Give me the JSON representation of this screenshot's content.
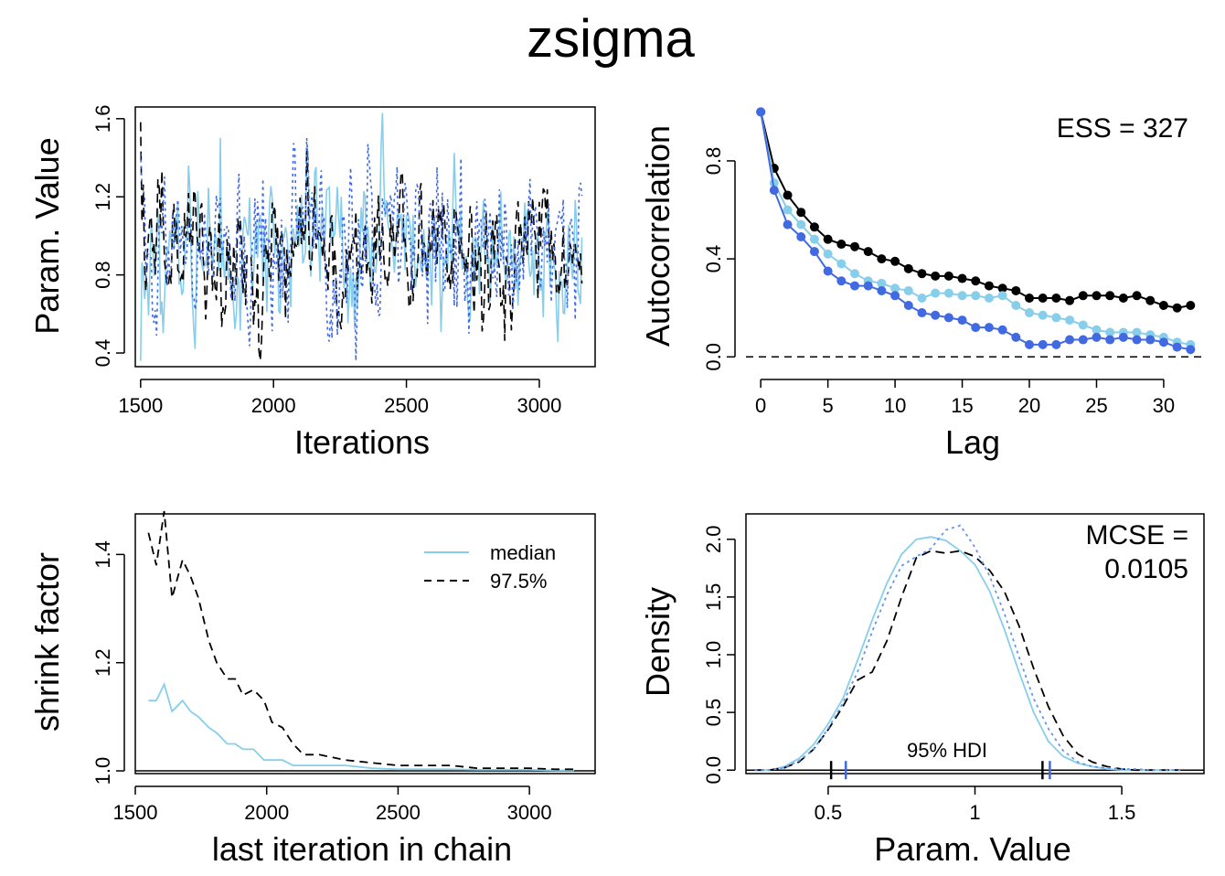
{
  "title": "zsigma",
  "colors": {
    "chain1": "#87ceeb",
    "chain2": "#000000",
    "chain3": "#4169e1",
    "chain3_light": "#6495ed"
  },
  "chart_data": [
    {
      "panel": "trace",
      "type": "line",
      "xlabel": "Iterations",
      "ylabel": "Param. Value",
      "xlim": [
        1480,
        3210
      ],
      "ylim": [
        0.33,
        1.66
      ],
      "xticks": [
        1500,
        2000,
        2500,
        3000
      ],
      "yticks": [
        0.4,
        0.8,
        1.2,
        1.6
      ],
      "x_range": [
        1500,
        3160
      ],
      "series": [
        {
          "chain": 1,
          "mean": 0.93,
          "sd": 0.2,
          "seed": 11,
          "style": "solid",
          "color_key": "chain1"
        },
        {
          "chain": 2,
          "mean": 0.92,
          "sd": 0.19,
          "seed": 23,
          "style": "dashed",
          "color_key": "chain2"
        },
        {
          "chain": 3,
          "mean": 0.94,
          "sd": 0.21,
          "seed": 37,
          "style": "dotted",
          "color_key": "chain3"
        }
      ]
    },
    {
      "panel": "autocorrelation",
      "type": "line",
      "xlabel": "Lag",
      "ylabel": "Autocorrelation",
      "annotation": "ESS = 327",
      "xlim": [
        -1.1,
        33
      ],
      "ylim": [
        -0.04,
        1.02
      ],
      "xticks": [
        0,
        5,
        10,
        15,
        20,
        25,
        30
      ],
      "yticks": [
        0.0,
        0.4,
        0.8
      ],
      "lags": [
        0,
        1,
        2,
        3,
        4,
        5,
        6,
        7,
        8,
        9,
        10,
        11,
        12,
        13,
        14,
        15,
        16,
        17,
        18,
        19,
        20,
        21,
        22,
        23,
        24,
        25,
        26,
        27,
        28,
        29,
        30,
        31,
        32
      ],
      "series": [
        {
          "chain": 2,
          "color_key": "chain2",
          "values": [
            1.0,
            0.77,
            0.66,
            0.59,
            0.53,
            0.48,
            0.46,
            0.45,
            0.43,
            0.4,
            0.39,
            0.36,
            0.34,
            0.33,
            0.33,
            0.32,
            0.31,
            0.29,
            0.28,
            0.27,
            0.24,
            0.24,
            0.24,
            0.23,
            0.25,
            0.25,
            0.25,
            0.24,
            0.25,
            0.23,
            0.21,
            0.2,
            0.21
          ]
        },
        {
          "chain": 1,
          "color_key": "chain1",
          "values": [
            1.0,
            0.71,
            0.6,
            0.54,
            0.48,
            0.42,
            0.38,
            0.34,
            0.31,
            0.3,
            0.28,
            0.27,
            0.24,
            0.26,
            0.26,
            0.25,
            0.25,
            0.24,
            0.25,
            0.21,
            0.18,
            0.17,
            0.16,
            0.15,
            0.13,
            0.11,
            0.1,
            0.1,
            0.1,
            0.09,
            0.08,
            0.06,
            0.05
          ]
        },
        {
          "chain": 3,
          "color_key": "chain3",
          "values": [
            1.0,
            0.68,
            0.54,
            0.49,
            0.43,
            0.35,
            0.31,
            0.29,
            0.29,
            0.27,
            0.25,
            0.21,
            0.18,
            0.17,
            0.16,
            0.15,
            0.12,
            0.12,
            0.11,
            0.08,
            0.05,
            0.05,
            0.05,
            0.07,
            0.07,
            0.08,
            0.07,
            0.08,
            0.07,
            0.07,
            0.06,
            0.04,
            0.03
          ]
        }
      ],
      "reference_line": 0
    },
    {
      "panel": "shrink",
      "type": "line",
      "xlabel": "last iteration in chain",
      "ylabel": "shrink factor",
      "xlim": [
        1500,
        3250
      ],
      "ylim": [
        0.995,
        1.475
      ],
      "xticks": [
        1500,
        2000,
        2500,
        3000
      ],
      "yticks": [
        1.0,
        1.2,
        1.4
      ],
      "legend": {
        "position": "top-right",
        "entries": [
          "median",
          "97.5%"
        ]
      },
      "x": [
        1550,
        1580,
        1610,
        1640,
        1680,
        1710,
        1740,
        1780,
        1810,
        1850,
        1880,
        1910,
        1950,
        1990,
        2020,
        2060,
        2100,
        2140,
        2200,
        2300,
        2400,
        2500,
        2600,
        2700,
        2800,
        2900,
        3000,
        3100,
        3170
      ],
      "series": [
        {
          "name": "median",
          "color_key": "chain1",
          "values": [
            1.13,
            1.13,
            1.16,
            1.11,
            1.13,
            1.11,
            1.1,
            1.08,
            1.07,
            1.05,
            1.05,
            1.04,
            1.04,
            1.02,
            1.02,
            1.02,
            1.01,
            1.01,
            1.01,
            1.01,
            1.005,
            1.003,
            1.003,
            1.003,
            1.002,
            1.002,
            1.002,
            1.001,
            1.001
          ]
        },
        {
          "name": "97.5%",
          "color_key": "chain2",
          "values": [
            1.44,
            1.38,
            1.48,
            1.32,
            1.39,
            1.36,
            1.32,
            1.24,
            1.2,
            1.17,
            1.17,
            1.14,
            1.15,
            1.13,
            1.09,
            1.08,
            1.05,
            1.03,
            1.03,
            1.02,
            1.015,
            1.01,
            1.01,
            1.01,
            1.005,
            1.005,
            1.005,
            1.003,
            1.003
          ]
        }
      ]
    },
    {
      "panel": "density",
      "type": "line",
      "xlabel": "Param. Value",
      "ylabel": "Density",
      "annotation_lines": [
        "MCSE =",
        "0.0105"
      ],
      "hdi_label": "95% HDI",
      "xlim": [
        0.22,
        1.78
      ],
      "ylim": [
        -0.03,
        2.22
      ],
      "xticks": [
        0.5,
        1.0,
        1.5
      ],
      "yticks": [
        0.0,
        0.5,
        1.0,
        1.5,
        2.0
      ],
      "x": [
        0.25,
        0.3,
        0.35,
        0.4,
        0.45,
        0.5,
        0.55,
        0.6,
        0.65,
        0.7,
        0.75,
        0.8,
        0.85,
        0.9,
        0.95,
        1.0,
        1.05,
        1.1,
        1.15,
        1.2,
        1.25,
        1.3,
        1.35,
        1.4,
        1.45,
        1.5,
        1.55,
        1.6,
        1.65,
        1.7
      ],
      "series": [
        {
          "chain": 1,
          "color_key": "chain1",
          "style": "solid",
          "values": [
            0.0,
            0.0,
            0.03,
            0.1,
            0.22,
            0.4,
            0.62,
            0.95,
            1.3,
            1.62,
            1.87,
            2.0,
            2.02,
            1.99,
            1.9,
            1.78,
            1.55,
            1.22,
            0.85,
            0.5,
            0.25,
            0.12,
            0.06,
            0.03,
            0.01,
            0.0,
            0.0,
            0.0,
            0.0,
            0.0
          ]
        },
        {
          "chain": 2,
          "color_key": "chain2",
          "style": "dashed",
          "values": [
            0.0,
            0.0,
            0.02,
            0.07,
            0.18,
            0.35,
            0.55,
            0.78,
            0.85,
            1.12,
            1.5,
            1.84,
            1.9,
            1.88,
            1.9,
            1.85,
            1.73,
            1.55,
            1.25,
            0.88,
            0.55,
            0.3,
            0.14,
            0.07,
            0.03,
            0.01,
            0.0,
            0.0,
            0.0,
            0.0
          ]
        },
        {
          "chain": 3,
          "color_key": "chain3_light",
          "style": "dotted",
          "values": [
            0.0,
            0.0,
            0.02,
            0.08,
            0.18,
            0.36,
            0.58,
            0.85,
            1.2,
            1.52,
            1.77,
            1.85,
            1.92,
            2.08,
            2.12,
            1.93,
            1.68,
            1.36,
            0.98,
            0.62,
            0.36,
            0.17,
            0.07,
            0.03,
            0.02,
            0.01,
            0.01,
            0.0,
            0.0,
            0.0
          ]
        }
      ],
      "hdi_ticks": [
        {
          "value": 0.51,
          "color_key": "chain2"
        },
        {
          "value": 0.56,
          "color_key": "chain3"
        },
        {
          "value": 1.23,
          "color_key": "chain2"
        },
        {
          "value": 1.255,
          "color_key": "chain3"
        }
      ]
    }
  ]
}
